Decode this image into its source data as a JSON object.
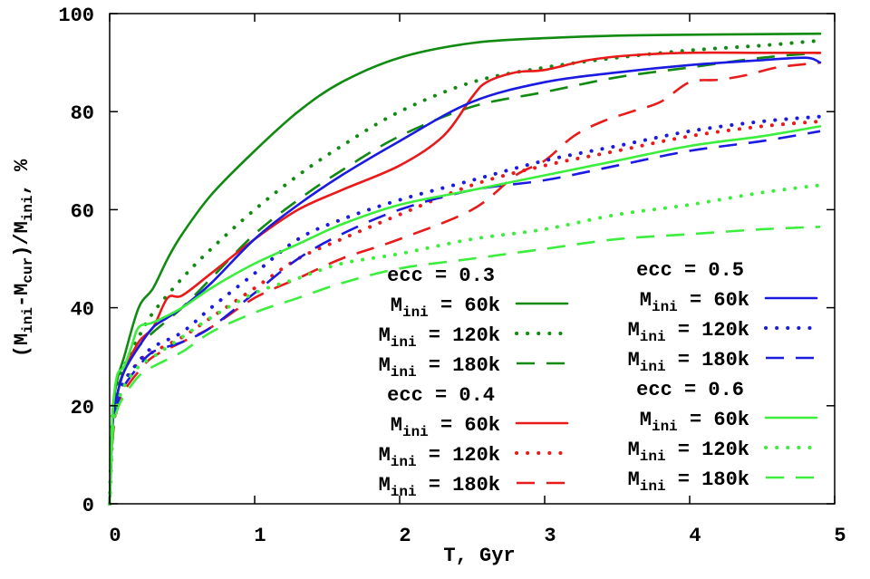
{
  "chart_data": {
    "type": "line",
    "xlabel": "T, Gyr",
    "ylabel": {
      "pre": "(M",
      "sub1": "ini",
      "mid": "-M",
      "sub2": "cur",
      "mid2": ")/M",
      "sub3": "ini",
      "post": ", %"
    },
    "xlim": [
      0,
      5
    ],
    "ylim": [
      0,
      100
    ],
    "xticks": [
      0,
      1,
      2,
      3,
      4,
      5
    ],
    "yticks": [
      0,
      20,
      40,
      60,
      80,
      100
    ],
    "legend": {
      "placement": "bottom-right",
      "ecc_03": "ecc = 0.3",
      "ecc_04": "ecc = 0.4",
      "ecc_05": "ecc = 0.5",
      "ecc_06": "ecc = 0.6",
      "m_prefix": "M",
      "m_sub": "ini",
      "m60": " = 60k",
      "m120": " = 120k",
      "m180": " = 180k"
    },
    "series": [
      {
        "name": "ecc=0.3 Mini=60k",
        "color": "#118a11",
        "dash": "solid",
        "x": [
          0.0,
          0.02,
          0.05,
          0.1,
          0.2,
          0.3,
          0.4,
          0.5,
          0.7,
          1.0,
          1.3,
          1.6,
          2.0,
          2.5,
          3.0,
          3.5,
          4.0,
          4.5,
          4.9
        ],
        "y": [
          0,
          18,
          25,
          30,
          40,
          44,
          50,
          55,
          63,
          72,
          80,
          86,
          91,
          94,
          95,
          95.5,
          95.7,
          95.8,
          95.9
        ]
      },
      {
        "name": "ecc=0.3 Mini=120k",
        "color": "#118a11",
        "dash": "dot",
        "x": [
          0.0,
          0.02,
          0.05,
          0.1,
          0.2,
          0.3,
          0.5,
          0.7,
          1.0,
          1.3,
          1.6,
          2.0,
          2.5,
          3.0,
          3.5,
          4.0,
          4.5,
          4.9
        ],
        "y": [
          0,
          18,
          24,
          28,
          34,
          39,
          46,
          52,
          60,
          67,
          73,
          80,
          86,
          89,
          91,
          92.5,
          93.5,
          94.5
        ]
      },
      {
        "name": "ecc=0.3 Mini=180k",
        "color": "#118a11",
        "dash": "dash",
        "x": [
          0.0,
          0.02,
          0.05,
          0.1,
          0.2,
          0.3,
          0.5,
          0.7,
          1.0,
          1.3,
          1.6,
          2.0,
          2.5,
          3.0,
          3.5,
          4.0,
          4.5,
          4.9
        ],
        "y": [
          0,
          18,
          23,
          27,
          32,
          35,
          40,
          46,
          55,
          62,
          68,
          75,
          81,
          84,
          87,
          89,
          91,
          92
        ]
      },
      {
        "name": "ecc=0.4 Mini=60k",
        "color": "#e81a1a",
        "dash": "solid",
        "x": [
          0.0,
          0.02,
          0.05,
          0.1,
          0.2,
          0.3,
          0.4,
          0.5,
          0.7,
          1.0,
          1.3,
          1.6,
          2.0,
          2.3,
          2.5,
          2.6,
          2.8,
          3.0,
          3.3,
          3.6,
          4.0,
          4.5,
          4.9
        ],
        "y": [
          0,
          16,
          22,
          27,
          33,
          36,
          42,
          42.5,
          47,
          54,
          60,
          64,
          69,
          75,
          83,
          86,
          88,
          88.5,
          90.5,
          91.5,
          92,
          92,
          92
        ]
      },
      {
        "name": "ecc=0.4 Mini=120k",
        "color": "#e81a1a",
        "dash": "dot",
        "x": [
          0.0,
          0.02,
          0.05,
          0.1,
          0.2,
          0.3,
          0.5,
          0.7,
          1.0,
          1.3,
          1.6,
          2.0,
          2.5,
          3.0,
          3.5,
          4.0,
          4.5,
          4.9
        ],
        "y": [
          0,
          14,
          20,
          24,
          29,
          31,
          34,
          38,
          44,
          50,
          54,
          59,
          65,
          69,
          72,
          75,
          77,
          78
        ]
      },
      {
        "name": "ecc=0.4 Mini=180k",
        "color": "#e81a1a",
        "dash": "dash",
        "x": [
          0.0,
          0.02,
          0.05,
          0.1,
          0.2,
          0.3,
          0.5,
          0.7,
          1.0,
          1.3,
          1.6,
          2.0,
          2.5,
          2.8,
          3.0,
          3.2,
          3.4,
          3.6,
          3.8,
          4.0,
          4.2,
          4.4,
          4.6,
          4.9
        ],
        "y": [
          0,
          13,
          19,
          23,
          27,
          30,
          33,
          36,
          42,
          46,
          50,
          54,
          60,
          67,
          70,
          75,
          78,
          80,
          82,
          86,
          86.5,
          87.5,
          89,
          90
        ]
      },
      {
        "name": "ecc=0.5 Mini=60k",
        "color": "#1a1ae0",
        "dash": "solid",
        "x": [
          0.0,
          0.02,
          0.05,
          0.1,
          0.2,
          0.3,
          0.4,
          0.5,
          0.7,
          1.0,
          1.3,
          1.6,
          2.0,
          2.5,
          3.0,
          3.5,
          4.0,
          4.5,
          4.8,
          4.9
        ],
        "y": [
          0,
          16,
          22,
          27,
          32,
          36,
          38,
          40,
          45,
          54,
          61,
          67,
          74,
          82,
          86,
          88,
          89.5,
          90.5,
          91,
          90
        ]
      },
      {
        "name": "ecc=0.5 Mini=120k",
        "color": "#1a1ae0",
        "dash": "dot",
        "x": [
          0.0,
          0.02,
          0.05,
          0.1,
          0.2,
          0.3,
          0.5,
          0.7,
          1.0,
          1.3,
          1.6,
          2.0,
          2.5,
          3.0,
          3.5,
          4.0,
          4.5,
          4.9
        ],
        "y": [
          0,
          15,
          21,
          25,
          29,
          32,
          35,
          40,
          47,
          54,
          58,
          62,
          66,
          70,
          73,
          76,
          78,
          79
        ]
      },
      {
        "name": "ecc=0.5 Mini=180k",
        "color": "#1a1ae0",
        "dash": "dash",
        "x": [
          0.0,
          0.02,
          0.05,
          0.1,
          0.2,
          0.3,
          0.5,
          0.7,
          1.0,
          1.3,
          1.6,
          2.0,
          2.5,
          3.0,
          3.5,
          4.0,
          4.5,
          4.9
        ],
        "y": [
          0,
          14,
          20,
          24,
          28,
          31,
          33,
          36,
          43,
          50,
          55,
          60,
          64,
          66,
          69,
          72,
          74,
          76
        ]
      },
      {
        "name": "ecc=0.6 Mini=60k",
        "color": "#3cee3c",
        "dash": "solid",
        "x": [
          0.0,
          0.02,
          0.05,
          0.1,
          0.15,
          0.2,
          0.3,
          0.5,
          0.7,
          1.0,
          1.3,
          1.6,
          2.0,
          2.5,
          3.0,
          3.5,
          4.0,
          4.5,
          4.9
        ],
        "y": [
          0,
          18,
          26,
          28,
          32,
          36,
          37,
          40,
          44,
          49,
          53,
          57,
          61,
          64,
          67,
          70,
          73,
          75,
          77
        ]
      },
      {
        "name": "ecc=0.6 Mini=120k",
        "color": "#3cee3c",
        "dash": "dot",
        "x": [
          0.0,
          0.02,
          0.05,
          0.1,
          0.2,
          0.3,
          0.5,
          0.7,
          1.0,
          1.3,
          1.6,
          2.0,
          2.5,
          3.0,
          3.5,
          4.0,
          4.5,
          4.9
        ],
        "y": [
          0,
          15,
          20,
          24,
          28,
          30,
          34,
          38,
          43,
          46,
          49,
          51,
          54,
          56,
          59,
          61,
          63.5,
          65
        ]
      },
      {
        "name": "ecc=0.6 Mini=180k",
        "color": "#3cee3c",
        "dash": "dash",
        "x": [
          0.0,
          0.02,
          0.05,
          0.1,
          0.2,
          0.3,
          0.5,
          0.7,
          1.0,
          1.3,
          1.6,
          2.0,
          2.5,
          3.0,
          3.5,
          4.0,
          4.5,
          4.9
        ],
        "y": [
          0,
          14,
          19,
          22,
          26,
          28,
          31,
          35,
          39,
          42,
          45,
          48,
          50,
          52,
          54,
          55,
          56,
          56.5
        ]
      }
    ]
  }
}
